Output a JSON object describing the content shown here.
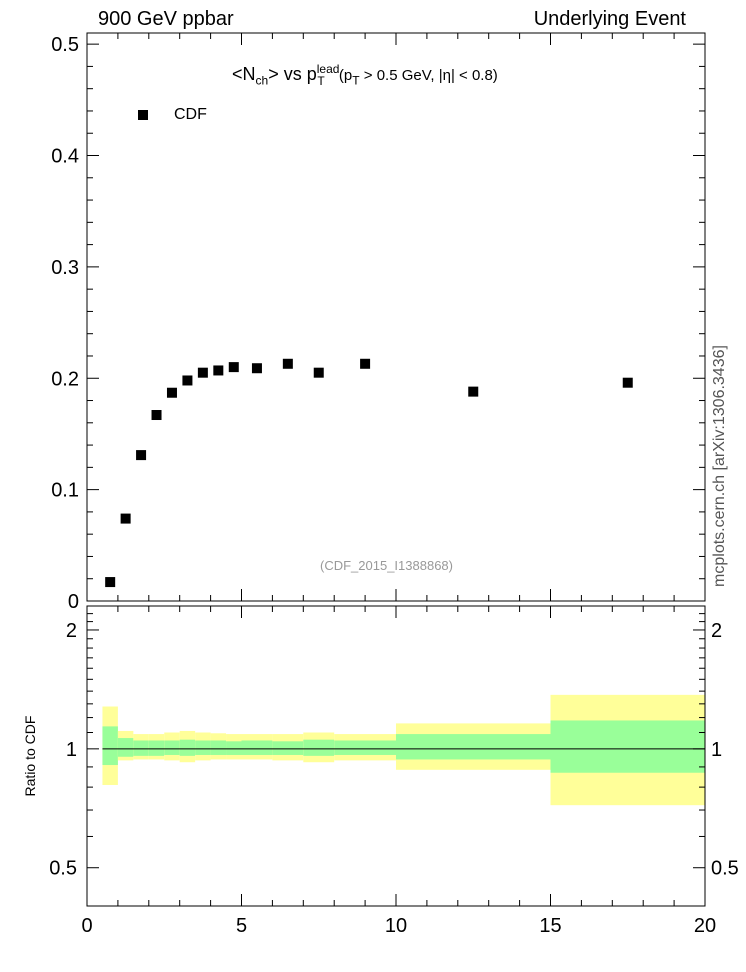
{
  "header": {
    "left": "900 GeV ppbar",
    "right": "Underlying Event"
  },
  "side_label": "mcplots.cern.ch [arXiv:1306.3436]",
  "ratio_ylabel": "Ratio to CDF",
  "watermark": "(CDF_2015_I1388868)",
  "title": {
    "main_prefix": "<N",
    "main_sub": "ch",
    "main_mid": "> vs p",
    "main_sup": "lead",
    "main_sub2": "T",
    "cut_open": " (p",
    "cut_sub": "T",
    "cut_rest": " > 0.5 GeV, |η| < 0.8)"
  },
  "legend": {
    "label": "CDF"
  },
  "colors": {
    "band_inner": "#99ff99",
    "band_outer": "#ffff99",
    "marker": "#000000"
  },
  "chart_data": [
    {
      "type": "scatter",
      "name": "main",
      "xlim": [
        0,
        20
      ],
      "ylim": [
        0,
        0.51
      ],
      "yticks": [
        0,
        0.1,
        0.2,
        0.3,
        0.4,
        0.5
      ],
      "ytick_labels": [
        "0",
        "0.1",
        "0.2",
        "0.3",
        "0.4",
        "0.5"
      ],
      "series": [
        {
          "name": "CDF",
          "x": [
            0.75,
            1.25,
            1.75,
            2.25,
            2.75,
            3.25,
            3.75,
            4.25,
            4.75,
            5.5,
            6.5,
            7.5,
            9.0,
            12.5,
            17.5
          ],
          "y": [
            0.017,
            0.074,
            0.131,
            0.167,
            0.187,
            0.198,
            0.205,
            0.207,
            0.21,
            0.209,
            0.213,
            0.205,
            0.213,
            0.188,
            0.196
          ]
        }
      ]
    },
    {
      "type": "area",
      "name": "ratio",
      "xlim": [
        0,
        20
      ],
      "ylim": [
        0.4,
        2.3
      ],
      "log_y": true,
      "yticks": [
        0.5,
        1,
        2
      ],
      "ytick_labels": [
        "0.5",
        "1",
        "2"
      ],
      "xticks": [
        0,
        5,
        10,
        15,
        20
      ],
      "xtick_labels": [
        "0",
        "5",
        "10",
        "15",
        "20"
      ],
      "bins": [
        {
          "lo": 0.5,
          "hi": 1.0,
          "inner": [
            0.91,
            1.14
          ],
          "outer": [
            0.81,
            1.28
          ]
        },
        {
          "lo": 1.0,
          "hi": 1.5,
          "inner": [
            0.955,
            1.065
          ],
          "outer": [
            0.935,
            1.11
          ]
        },
        {
          "lo": 1.5,
          "hi": 2.0,
          "inner": [
            0.96,
            1.05
          ],
          "outer": [
            0.94,
            1.09
          ]
        },
        {
          "lo": 2.0,
          "hi": 2.5,
          "inner": [
            0.96,
            1.05
          ],
          "outer": [
            0.94,
            1.09
          ]
        },
        {
          "lo": 2.5,
          "hi": 3.0,
          "inner": [
            0.965,
            1.05
          ],
          "outer": [
            0.935,
            1.1
          ]
        },
        {
          "lo": 3.0,
          "hi": 3.5,
          "inner": [
            0.96,
            1.055
          ],
          "outer": [
            0.925,
            1.11
          ]
        },
        {
          "lo": 3.5,
          "hi": 4.0,
          "inner": [
            0.965,
            1.05
          ],
          "outer": [
            0.935,
            1.1
          ]
        },
        {
          "lo": 4.0,
          "hi": 4.5,
          "inner": [
            0.965,
            1.05
          ],
          "outer": [
            0.94,
            1.095
          ]
        },
        {
          "lo": 4.5,
          "hi": 5.0,
          "inner": [
            0.965,
            1.045
          ],
          "outer": [
            0.94,
            1.09
          ]
        },
        {
          "lo": 5.0,
          "hi": 6.0,
          "inner": [
            0.965,
            1.05
          ],
          "outer": [
            0.94,
            1.09
          ]
        },
        {
          "lo": 6.0,
          "hi": 7.0,
          "inner": [
            0.965,
            1.045
          ],
          "outer": [
            0.935,
            1.09
          ]
        },
        {
          "lo": 7.0,
          "hi": 8.0,
          "inner": [
            0.96,
            1.055
          ],
          "outer": [
            0.925,
            1.1
          ]
        },
        {
          "lo": 8.0,
          "hi": 10.0,
          "inner": [
            0.965,
            1.05
          ],
          "outer": [
            0.935,
            1.09
          ]
        },
        {
          "lo": 10.0,
          "hi": 15.0,
          "inner": [
            0.94,
            1.09
          ],
          "outer": [
            0.885,
            1.16
          ]
        },
        {
          "lo": 15.0,
          "hi": 20.0,
          "inner": [
            0.87,
            1.18
          ],
          "outer": [
            0.72,
            1.37
          ]
        }
      ]
    }
  ]
}
